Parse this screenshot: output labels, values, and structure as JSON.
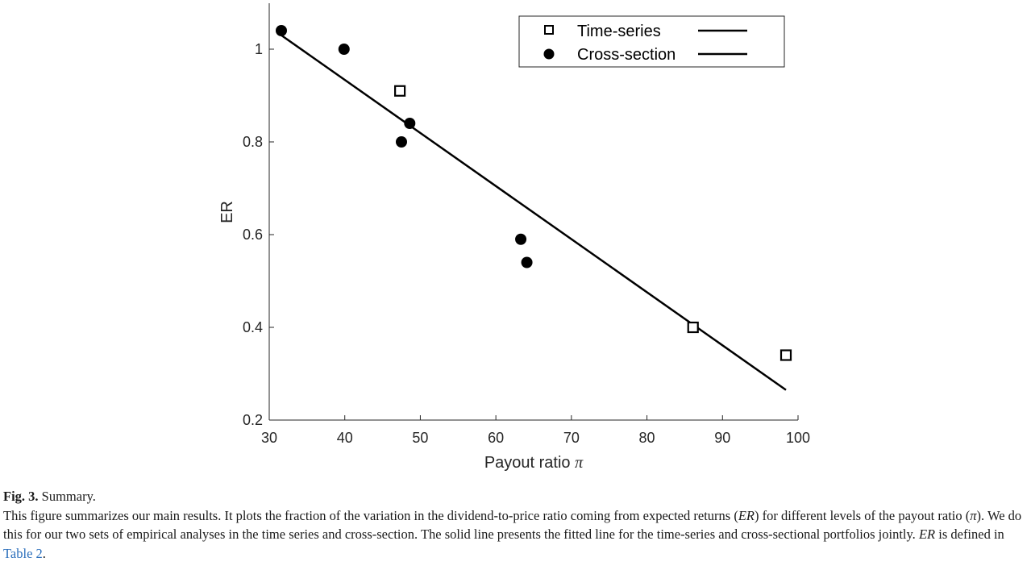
{
  "chart_data": {
    "type": "scatter",
    "xlabel": "Payout ratio",
    "xlabel_symbol": "π",
    "ylabel": "ER",
    "xlim": [
      30,
      100
    ],
    "ylim": [
      0.2,
      1.05
    ],
    "xticks": [
      30,
      40,
      50,
      60,
      70,
      80,
      90,
      100
    ],
    "yticks": [
      0.2,
      0.4,
      0.6,
      0.8,
      1
    ],
    "ytick_labels": [
      "0.2",
      "0.4",
      "0.6",
      "0.8",
      "1"
    ],
    "grid": false,
    "legend_position": "top-right",
    "series": [
      {
        "name": "Time-series",
        "marker": "open-square",
        "x": [
          47.3,
          86.1,
          98.4
        ],
        "y": [
          0.91,
          0.4,
          0.34
        ]
      },
      {
        "name": "Cross-section",
        "marker": "filled-circle",
        "x": [
          31.6,
          39.9,
          48.6,
          47.5,
          63.3,
          64.1
        ],
        "y": [
          1.04,
          1.0,
          0.84,
          0.8,
          0.59,
          0.54
        ]
      }
    ],
    "fit_line": {
      "x": [
        31.6,
        98.4
      ],
      "y": [
        1.03,
        0.265
      ]
    },
    "color": "#000000"
  },
  "caption": {
    "fig_label": "Fig. 3.",
    "fig_title": "Summary.",
    "t1": "This figure summarizes our main results. It plots the fraction of the variation in the dividend-to-price ratio coming from expected returns (",
    "er1": "ER",
    "t2": ") for different levels of the payout ratio (",
    "pi": "π",
    "t3": "). We do this for our two sets of empirical analyses in the time series and cross-section. The solid line presents the fitted line for the time-series and cross-sectional portfolios jointly. ",
    "er2": "ER",
    "t4": " is defined in ",
    "link": "Table 2",
    "t5": "."
  }
}
